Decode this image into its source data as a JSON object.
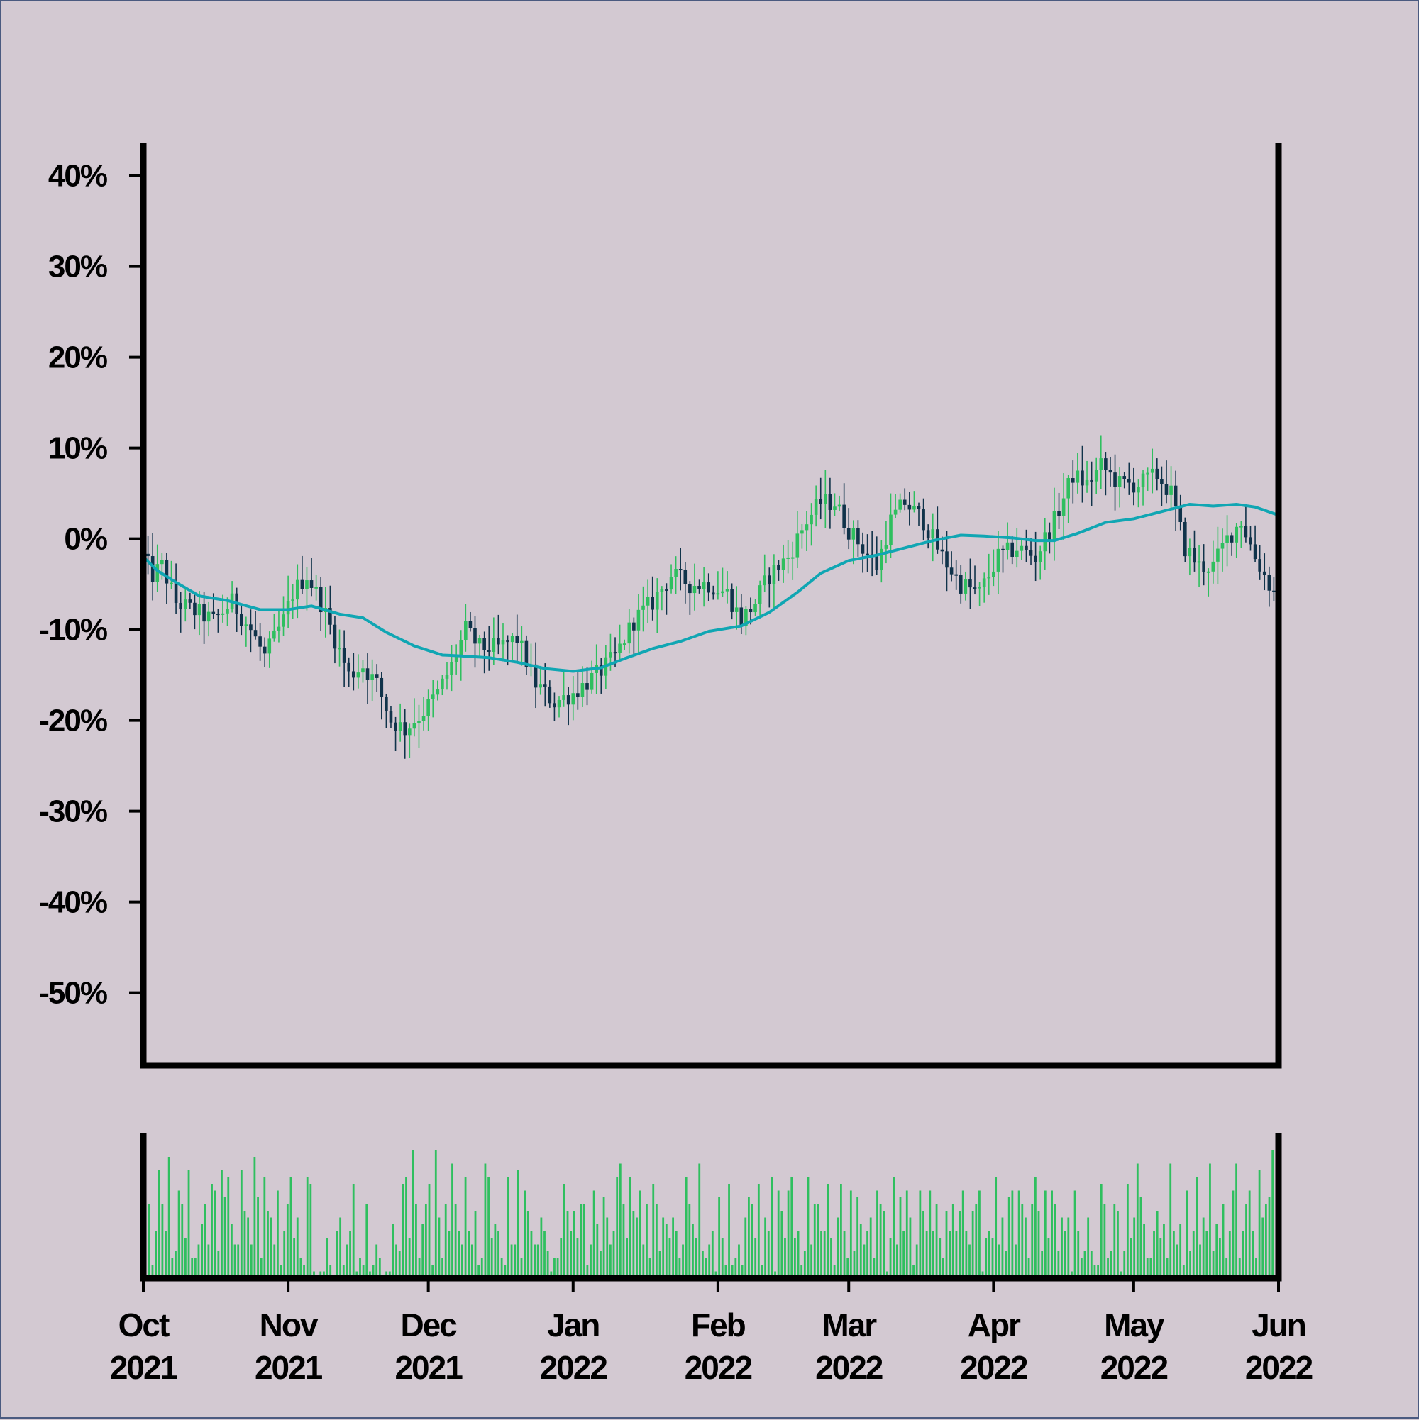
{
  "chart_data": [
    {
      "type": "candlestick",
      "x_axis_type": "date",
      "date_range": [
        "2021-10-01",
        "2022-06-01"
      ],
      "y_unit": "%",
      "ylim": [
        -58,
        42
      ],
      "y_ticks": [
        40,
        30,
        20,
        10,
        0,
        -10,
        -20,
        -30,
        -40,
        -50
      ],
      "y_tick_labels": [
        "40%",
        "30%",
        "20%",
        "10%",
        "0%",
        "-10%",
        "-20%",
        "-30%",
        "-40%",
        "-50%"
      ],
      "x_tick_dates": [
        "2021-10-01",
        "2021-11-01",
        "2021-12-01",
        "2022-01-01",
        "2022-02-01",
        "2022-03-01",
        "2022-04-01",
        "2022-05-01",
        "2022-06-01"
      ],
      "x_tick_labels": [
        {
          "month": "Oct",
          "year": "2021"
        },
        {
          "month": "Nov",
          "year": "2021"
        },
        {
          "month": "Dec",
          "year": "2021"
        },
        {
          "month": "Jan",
          "year": "2022"
        },
        {
          "month": "Feb",
          "year": "2022"
        },
        {
          "month": "Mar",
          "year": "2022"
        },
        {
          "month": "Apr",
          "year": "2022"
        },
        {
          "month": "May",
          "year": "2022"
        },
        {
          "month": "Jun",
          "year": "2022"
        }
      ],
      "close_path": [
        [
          "2021-10-01",
          -2
        ],
        [
          "2021-10-03",
          -4
        ],
        [
          "2021-10-05",
          -3
        ],
        [
          "2021-10-08",
          -7
        ],
        [
          "2021-10-12",
          -8
        ],
        [
          "2021-10-16",
          -9
        ],
        [
          "2021-10-20",
          -7
        ],
        [
          "2021-10-24",
          -10
        ],
        [
          "2021-10-27",
          -13
        ],
        [
          "2021-10-31",
          -9
        ],
        [
          "2021-11-02",
          -6
        ],
        [
          "2021-11-05",
          -4
        ],
        [
          "2021-11-08",
          -7
        ],
        [
          "2021-11-11",
          -11
        ],
        [
          "2021-11-14",
          -15
        ],
        [
          "2021-11-17",
          -14
        ],
        [
          "2021-11-20",
          -16
        ],
        [
          "2021-11-23",
          -20
        ],
        [
          "2021-11-26",
          -21
        ],
        [
          "2021-11-30",
          -19
        ],
        [
          "2021-12-03",
          -17
        ],
        [
          "2021-12-06",
          -14
        ],
        [
          "2021-12-09",
          -10
        ],
        [
          "2021-12-12",
          -12
        ],
        [
          "2021-12-16",
          -12
        ],
        [
          "2021-12-20",
          -11
        ],
        [
          "2021-12-24",
          -16
        ],
        [
          "2021-12-28",
          -18
        ],
        [
          "2022-01-01",
          -17
        ],
        [
          "2022-01-06",
          -15
        ],
        [
          "2022-01-10",
          -13
        ],
        [
          "2022-01-14",
          -9
        ],
        [
          "2022-01-18",
          -7
        ],
        [
          "2022-01-22",
          -4
        ],
        [
          "2022-01-26",
          -5
        ],
        [
          "2022-01-30",
          -5
        ],
        [
          "2022-02-03",
          -6
        ],
        [
          "2022-02-06",
          -9
        ],
        [
          "2022-02-09",
          -7
        ],
        [
          "2022-02-12",
          -4
        ],
        [
          "2022-02-16",
          -2
        ],
        [
          "2022-02-20",
          2
        ],
        [
          "2022-02-23",
          4
        ],
        [
          "2022-02-26",
          4
        ],
        [
          "2022-03-01",
          1
        ],
        [
          "2022-03-04",
          -1
        ],
        [
          "2022-03-07",
          -3
        ],
        [
          "2022-03-10",
          2
        ],
        [
          "2022-03-13",
          4
        ],
        [
          "2022-03-17",
          2
        ],
        [
          "2022-03-21",
          -2
        ],
        [
          "2022-03-25",
          -5
        ],
        [
          "2022-03-29",
          -6
        ],
        [
          "2022-04-02",
          -2
        ],
        [
          "2022-04-06",
          -1
        ],
        [
          "2022-04-10",
          -2
        ],
        [
          "2022-04-14",
          2
        ],
        [
          "2022-04-18",
          7
        ],
        [
          "2022-04-21",
          6
        ],
        [
          "2022-04-24",
          8
        ],
        [
          "2022-04-28",
          6
        ],
        [
          "2022-05-02",
          6
        ],
        [
          "2022-05-06",
          7
        ],
        [
          "2022-05-09",
          5
        ],
        [
          "2022-05-12",
          -1
        ],
        [
          "2022-05-15",
          -3
        ],
        [
          "2022-05-18",
          -3
        ],
        [
          "2022-05-21",
          0
        ],
        [
          "2022-05-24",
          2
        ],
        [
          "2022-05-27",
          -2
        ],
        [
          "2022-05-30",
          -5
        ],
        [
          "2022-06-01",
          -7
        ]
      ],
      "moving_average": [
        [
          "2021-10-01",
          -2
        ],
        [
          "2021-10-04",
          -3.5
        ],
        [
          "2021-10-08",
          -4.8
        ],
        [
          "2021-10-13",
          -6.3
        ],
        [
          "2021-10-19",
          -6.8
        ],
        [
          "2021-10-26",
          -7.8
        ],
        [
          "2021-11-01",
          -7.8
        ],
        [
          "2021-11-06",
          -7.4
        ],
        [
          "2021-11-12",
          -8.3
        ],
        [
          "2021-11-17",
          -8.7
        ],
        [
          "2021-11-22",
          -10.3
        ],
        [
          "2021-11-28",
          -11.8
        ],
        [
          "2021-12-04",
          -12.8
        ],
        [
          "2021-12-08",
          -12.9
        ],
        [
          "2021-12-14",
          -13.1
        ],
        [
          "2021-12-20",
          -13.6
        ],
        [
          "2021-12-26",
          -14.3
        ],
        [
          "2022-01-01",
          -14.6
        ],
        [
          "2022-01-07",
          -14.2
        ],
        [
          "2022-01-12",
          -13.2
        ],
        [
          "2022-01-18",
          -12.1
        ],
        [
          "2022-01-24",
          -11.3
        ],
        [
          "2022-01-30",
          -10.2
        ],
        [
          "2022-02-06",
          -9.6
        ],
        [
          "2022-02-12",
          -8.1
        ],
        [
          "2022-02-18",
          -5.9
        ],
        [
          "2022-02-23",
          -3.8
        ],
        [
          "2022-03-01",
          -2.4
        ],
        [
          "2022-03-07",
          -1.8
        ],
        [
          "2022-03-13",
          -1.0
        ],
        [
          "2022-03-19",
          -0.2
        ],
        [
          "2022-03-25",
          0.4
        ],
        [
          "2022-03-30",
          0.3
        ],
        [
          "2022-04-05",
          0.1
        ],
        [
          "2022-04-10",
          -0.2
        ],
        [
          "2022-04-14",
          -0.2
        ],
        [
          "2022-04-19",
          0.6
        ],
        [
          "2022-04-25",
          1.8
        ],
        [
          "2022-05-01",
          2.2
        ],
        [
          "2022-05-07",
          3.0
        ],
        [
          "2022-05-13",
          3.8
        ],
        [
          "2022-05-18",
          3.6
        ],
        [
          "2022-05-23",
          3.8
        ],
        [
          "2022-05-27",
          3.5
        ],
        [
          "2022-06-01",
          2.6
        ]
      ],
      "colors": {
        "up": "#2fbf5f",
        "down": "#10334a",
        "moving_average": "#10a6b3",
        "axis": "#000000",
        "background": "#d3c9d2"
      },
      "grid": false
    },
    {
      "type": "bar",
      "panel": "volume",
      "color": "#2fbf5f",
      "date_range": [
        "2021-10-01",
        "2022-06-01"
      ],
      "relative_volume": [
        0.55,
        0.1,
        0.35,
        0.8,
        0.55,
        0.35,
        0.9,
        0.15,
        0.2,
        0.65,
        0.55,
        0.3,
        0.8,
        0.15,
        0.15,
        0.25,
        0.4,
        0.55,
        0.25,
        0.7,
        0.65,
        0.2,
        0.8,
        0.6,
        0.75,
        0.4,
        0.25,
        0.25,
        0.8,
        0.5,
        0.45,
        0.25,
        0.9,
        0.6,
        0.15,
        0.75,
        0.5,
        0.45,
        0.25,
        0.65,
        0.1,
        0.35,
        0.55,
        0.75,
        0.3,
        0.45,
        0.15,
        0.1,
        0.75,
        0.7,
        0.05,
        0.0,
        0.05,
        0.05,
        0.3,
        0.1,
        0.0,
        0.35,
        0.45,
        0.1,
        0.25,
        0.35,
        0.7,
        0.05,
        0.15,
        0.1,
        0.55,
        0.05,
        0.1,
        0.25,
        0.15,
        0.0,
        0.05,
        0.05,
        0.4,
        0.25,
        0.2,
        0.7,
        0.75,
        0.3,
        0.95,
        0.55,
        0.15,
        0.4,
        0.55,
        0.7,
        0.1,
        0.95,
        0.45,
        0.15,
        0.55,
        0.35,
        0.85,
        0.55,
        0.35,
        0.25,
        0.75,
        0.35,
        0.25,
        0.5,
        0.1,
        0.15,
        0.85,
        0.75,
        0.3,
        0.4,
        0.35,
        0.15,
        0.1,
        0.75,
        0.25,
        0.25,
        0.8,
        0.15,
        0.65,
        0.5,
        0.35,
        0.25,
        0.25,
        0.45,
        0.35,
        0.2,
        0.05,
        0.15,
        0.15,
        0.3,
        0.7,
        0.5,
        0.35,
        0.5,
        0.3,
        0.55,
        0.55,
        0.1,
        0.25,
        0.65,
        0.4,
        0.2,
        0.6,
        0.45,
        0.25,
        0.35,
        0.75,
        0.85,
        0.55,
        0.3,
        0.75,
        0.5,
        0.45,
        0.65,
        0.25,
        0.55,
        0.15,
        0.7,
        0.55,
        0.2,
        0.45,
        0.4,
        0.3,
        0.45,
        0.35,
        0.15,
        0.25,
        0.75,
        0.55,
        0.4,
        0.3,
        0.85,
        0.2,
        0.15,
        0.25,
        0.35,
        0.05,
        0.6,
        0.3,
        0.1,
        0.7,
        0.1,
        0.15,
        0.25,
        0.1,
        0.45,
        0.6,
        0.55,
        0.3,
        0.7,
        0.1,
        0.45,
        0.35,
        0.75,
        0.05,
        0.65,
        0.5,
        0.3,
        0.65,
        0.75,
        0.3,
        0.35,
        0.1,
        0.2,
        0.75,
        0.25,
        0.55,
        0.55,
        0.35,
        0.35,
        0.7,
        0.3,
        0.1,
        0.45,
        0.7,
        0.35,
        0.15,
        0.65,
        0.2,
        0.6,
        0.4,
        0.25,
        0.35,
        0.45,
        0.15,
        0.65,
        0.55,
        0.5,
        0.05,
        0.3,
        0.75,
        0.25,
        0.6,
        0.35,
        0.65,
        0.45,
        0.1,
        0.25,
        0.65,
        0.5,
        0.35,
        0.65,
        0.35,
        0.55,
        0.3,
        0.15,
        0.5,
        0.35,
        0.55,
        0.35,
        0.5,
        0.65,
        0.35,
        0.25,
        0.5,
        0.55,
        0.65,
        0.05,
        0.3,
        0.35,
        0.3,
        0.75,
        0.25,
        0.45,
        0.2,
        0.6,
        0.65,
        0.25,
        0.65,
        0.55,
        0.45,
        0.15,
        0.55,
        0.75,
        0.5,
        0.2,
        0.65,
        0.3,
        0.65,
        0.55,
        0.2,
        0.45,
        0.35,
        0.45,
        0.05,
        0.65,
        0.35,
        0.15,
        0.2,
        0.45,
        0.2,
        0.1,
        0.1,
        0.7,
        0.55,
        0.15,
        0.2,
        0.55,
        0.5,
        0.05,
        0.2,
        0.7,
        0.3,
        0.45,
        0.85,
        0.6,
        0.4,
        0.15,
        0.15,
        0.35,
        0.5,
        0.3,
        0.4,
        0.15,
        0.85,
        0.35,
        0.25,
        0.4,
        0.1,
        0.65,
        0.2,
        0.35,
        0.75,
        0.25,
        0.45,
        0.35,
        0.85,
        0.2,
        0.4,
        0.3,
        0.55,
        0.15,
        0.35,
        0.65,
        0.85,
        0.15,
        0.35,
        0.55,
        0.65,
        0.35,
        0.15,
        0.8,
        0.45,
        0.55,
        0.6,
        0.95
      ]
    }
  ]
}
